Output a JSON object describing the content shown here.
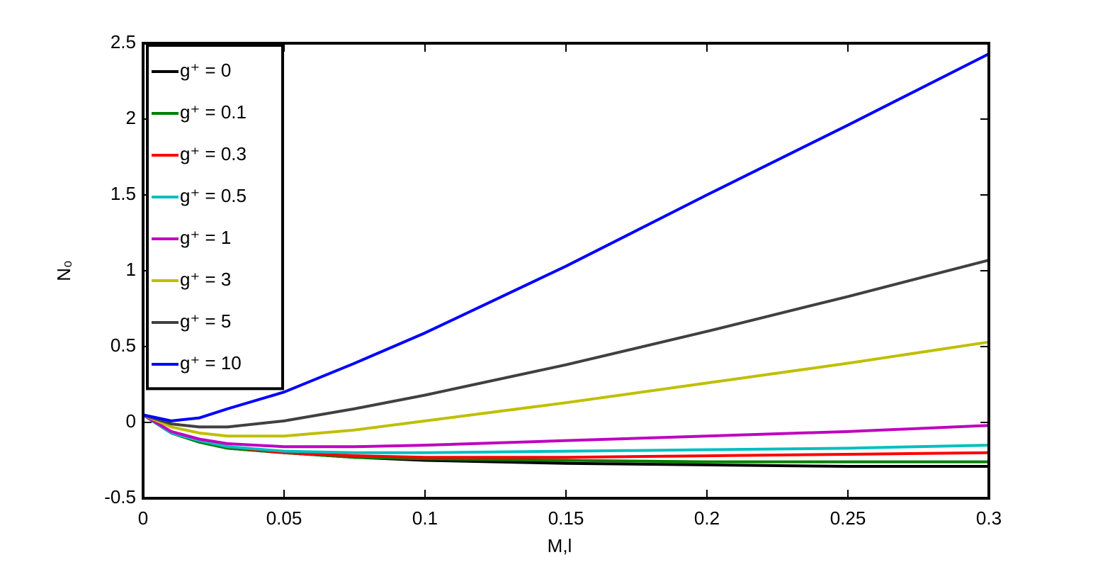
{
  "chart_data": {
    "type": "line",
    "xlabel": "M,l",
    "ylabel": "N₀",
    "x": [
      0,
      0.01,
      0.02,
      0.03,
      0.05,
      0.075,
      0.1,
      0.15,
      0.2,
      0.25,
      0.3
    ],
    "series": [
      {
        "name": "g⁺ = 0",
        "color": "#000000",
        "values": [
          0.05,
          -0.07,
          -0.13,
          -0.17,
          -0.2,
          -0.23,
          -0.25,
          -0.27,
          -0.28,
          -0.29,
          -0.29
        ]
      },
      {
        "name": "g⁺ = 0.1",
        "color": "#007f00",
        "values": [
          0.05,
          -0.07,
          -0.13,
          -0.17,
          -0.2,
          -0.23,
          -0.24,
          -0.25,
          -0.26,
          -0.26,
          -0.26
        ]
      },
      {
        "name": "g⁺ = 0.3",
        "color": "#ff0000",
        "values": [
          0.05,
          -0.07,
          -0.12,
          -0.16,
          -0.2,
          -0.22,
          -0.23,
          -0.23,
          -0.22,
          -0.21,
          -0.2
        ]
      },
      {
        "name": "g⁺ = 0.5",
        "color": "#00bfbf",
        "values": [
          0.05,
          -0.07,
          -0.12,
          -0.16,
          -0.19,
          -0.2,
          -0.2,
          -0.19,
          -0.18,
          -0.17,
          -0.15
        ]
      },
      {
        "name": "g⁺ = 1",
        "color": "#bf00bf",
        "values": [
          0.05,
          -0.06,
          -0.11,
          -0.14,
          -0.16,
          -0.16,
          -0.15,
          -0.12,
          -0.09,
          -0.06,
          -0.02
        ]
      },
      {
        "name": "g⁺ = 3",
        "color": "#bfbf00",
        "values": [
          0.05,
          -0.03,
          -0.07,
          -0.09,
          -0.09,
          -0.05,
          0.01,
          0.13,
          0.26,
          0.39,
          0.53
        ]
      },
      {
        "name": "g⁺ = 5",
        "color": "#404040",
        "values": [
          0.05,
          -0.01,
          -0.03,
          -0.03,
          0.01,
          0.09,
          0.18,
          0.38,
          0.6,
          0.83,
          1.07
        ]
      },
      {
        "name": "g⁺ = 10",
        "color": "#0000ff",
        "values": [
          0.05,
          0.01,
          0.03,
          0.09,
          0.2,
          0.39,
          0.59,
          1.03,
          1.5,
          1.96,
          2.43
        ]
      }
    ],
    "xlim": [
      0,
      0.3
    ],
    "xticks": [
      0,
      0.05,
      0.1,
      0.15,
      0.2,
      0.25,
      0.3
    ],
    "ylim": [
      -0.5,
      2.5
    ],
    "yticks": [
      -0.5,
      0,
      0.5,
      1,
      1.5,
      2,
      2.5
    ],
    "legend": "upper left",
    "grid": false
  }
}
